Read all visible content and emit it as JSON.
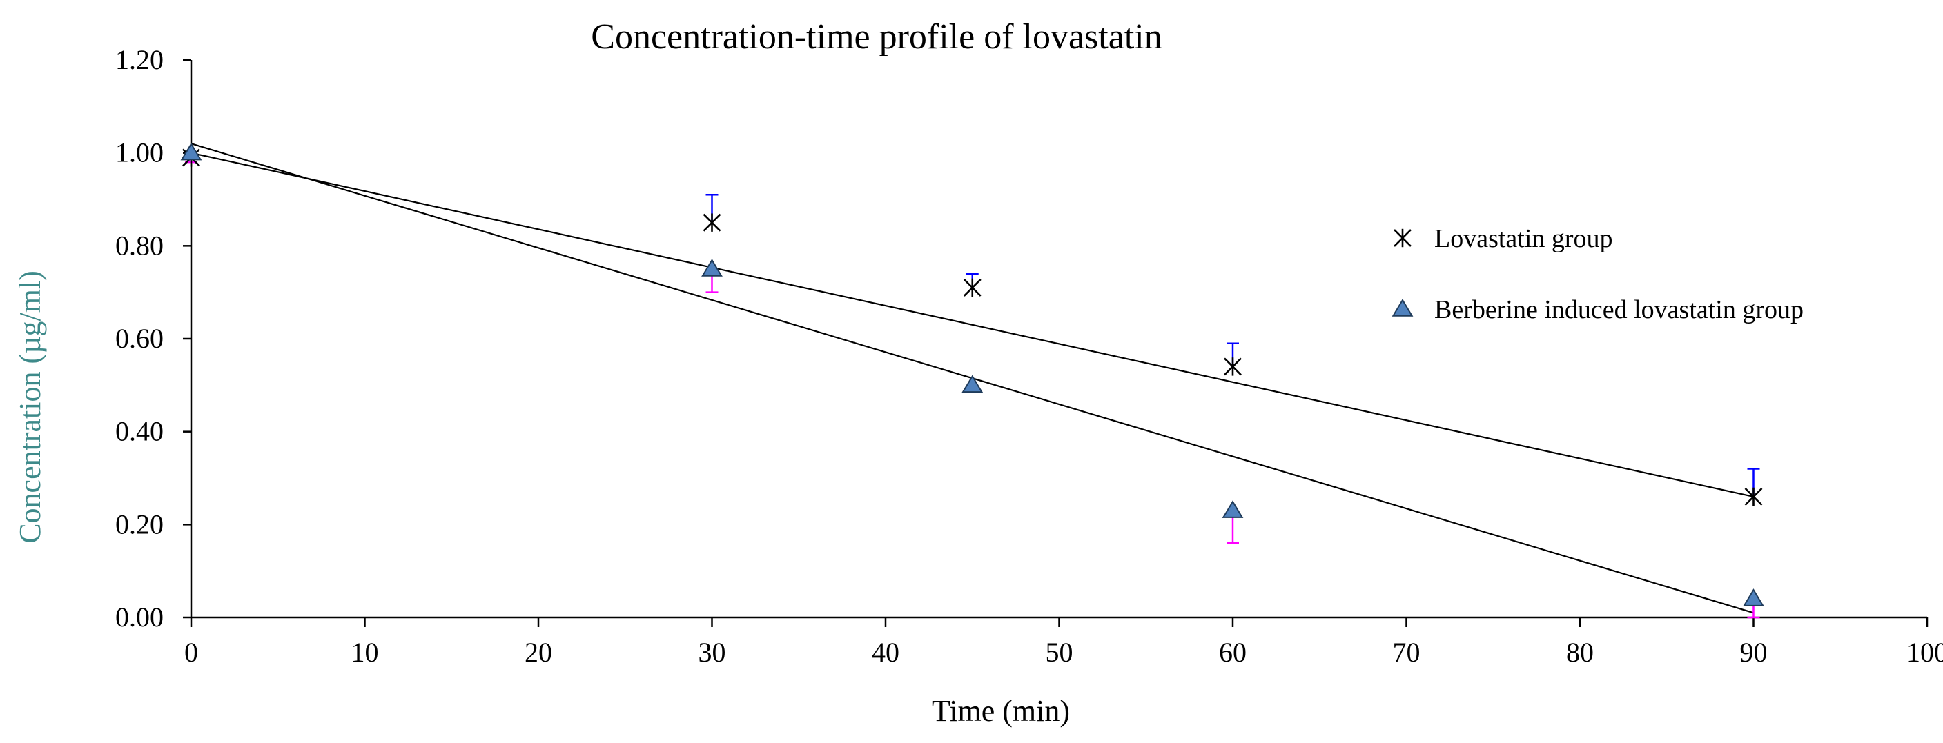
{
  "chart_data": {
    "type": "scatter",
    "title": "Concentration-time profile of lovastatin",
    "xlabel": "Time (min)",
    "ylabel": "Concentration (µg/ml)",
    "xlim": [
      0,
      100
    ],
    "ylim": [
      0,
      1.2
    ],
    "x_ticks": [
      "0",
      "10",
      "20",
      "30",
      "40",
      "50",
      "60",
      "70",
      "80",
      "90",
      "100"
    ],
    "y_ticks": [
      "0.00",
      "0.20",
      "0.40",
      "0.60",
      "0.80",
      "1.00",
      "1.20"
    ],
    "grid": false,
    "legend_position": "right",
    "series": [
      {
        "name": "Lovastatin group",
        "marker": "asterisk",
        "marker_color": "#000000",
        "error_color": "#0000ff",
        "x": [
          0,
          30,
          45,
          60,
          90
        ],
        "y": [
          0.99,
          0.85,
          0.71,
          0.54,
          0.26
        ],
        "error_plus": [
          0.0,
          0.06,
          0.03,
          0.05,
          0.06
        ],
        "trendline": {
          "start": [
            0,
            1.0
          ],
          "end": [
            90,
            0.26
          ]
        }
      },
      {
        "name": "Berberine induced lovastatin group",
        "marker": "triangle",
        "marker_color": "#4f81bd",
        "error_color": "#ff00ff",
        "x": [
          0,
          30,
          45,
          60,
          90
        ],
        "y": [
          1.0,
          0.75,
          0.5,
          0.23,
          0.04
        ],
        "error_minus": [
          0.02,
          0.05,
          0.0,
          0.07,
          0.04
        ],
        "trendline": {
          "start": [
            0,
            1.02
          ],
          "end": [
            90,
            0.01
          ]
        }
      }
    ]
  }
}
